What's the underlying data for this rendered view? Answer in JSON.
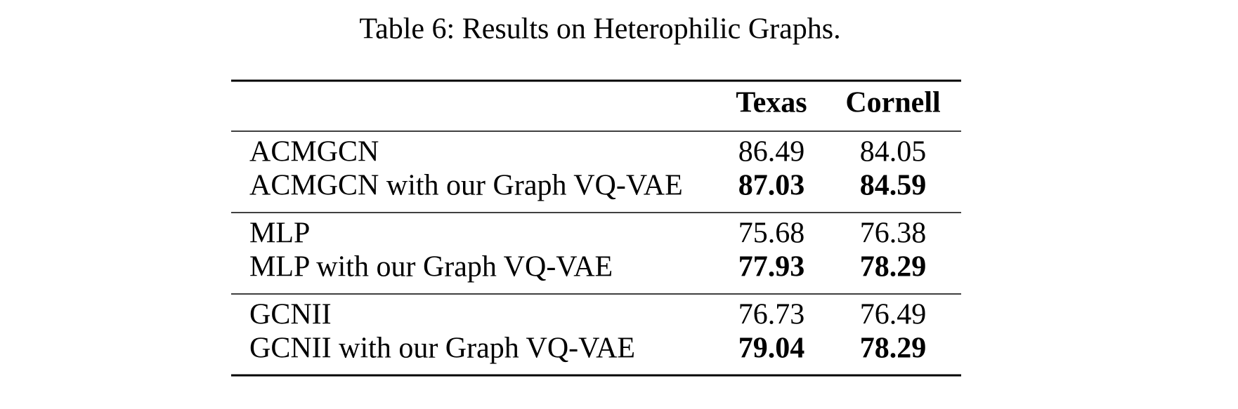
{
  "title": "Table 6: Results on Heterophilic Graphs.",
  "table": {
    "columns": [
      "Texas",
      "Cornell"
    ],
    "groups": [
      {
        "rows": [
          {
            "label": "ACMGCN",
            "values": [
              "86.49",
              "84.05"
            ],
            "bold": false
          },
          {
            "label": "ACMGCN with our Graph VQ-VAE",
            "values": [
              "87.03",
              "84.59"
            ],
            "bold": true
          }
        ]
      },
      {
        "rows": [
          {
            "label": "MLP",
            "values": [
              "75.68",
              "76.38"
            ],
            "bold": false
          },
          {
            "label": "MLP with our Graph VQ-VAE",
            "values": [
              "77.93",
              "78.29"
            ],
            "bold": true
          }
        ]
      },
      {
        "rows": [
          {
            "label": "GCNII",
            "values": [
              "76.73",
              "76.49"
            ],
            "bold": false
          },
          {
            "label": "GCNII with our Graph VQ-VAE",
            "values": [
              "79.04",
              "78.29"
            ],
            "bold": true
          }
        ]
      }
    ]
  }
}
